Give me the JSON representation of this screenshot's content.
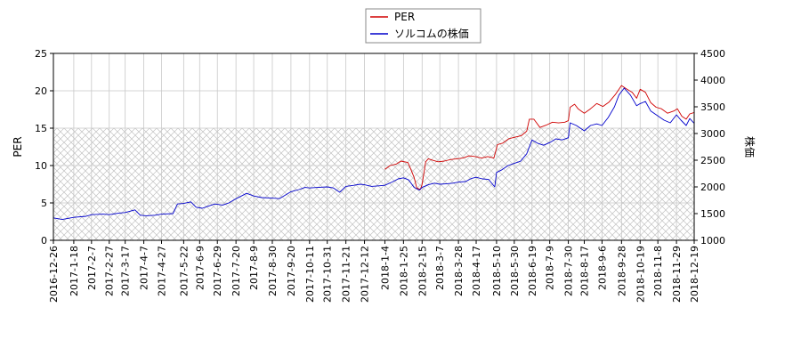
{
  "chart_data": {
    "type": "line",
    "grid": true,
    "hatched_band": {
      "from": 0,
      "to": 15
    },
    "legend_placement": "top-center",
    "xlim": [
      "2016-12-26",
      "2018-12-19"
    ],
    "x_ticks": [
      "2016-12-26",
      "2017-1-18",
      "2017-2-7",
      "2017-2-27",
      "2017-3-17",
      "2017-4-7",
      "2017-4-27",
      "2017-5-22",
      "2017-6-9",
      "2017-6-29",
      "2017-7-20",
      "2017-8-9",
      "2017-8-30",
      "2017-9-20",
      "2017-10-11",
      "2017-10-31",
      "2017-11-21",
      "2017-12-12",
      "2018-1-4",
      "2018-1-25",
      "2018-2-15",
      "2018-3-7",
      "2018-3-28",
      "2018-4-17",
      "2018-5-10",
      "2018-5-30",
      "2018-6-19",
      "2018-7-9",
      "2018-7-30",
      "2018-8-17",
      "2018-9-6",
      "2018-9-28",
      "2018-10-19",
      "2018-11-8",
      "2018-11-29",
      "2018-12-19"
    ],
    "y_left": {
      "label": "PER",
      "lim": [
        0,
        25
      ],
      "ticks": [
        "0",
        "5",
        "10",
        "15",
        "20",
        "25"
      ]
    },
    "y_right": {
      "label": "株価",
      "lim": [
        1000,
        4500
      ],
      "ticks": [
        "1000",
        "1500",
        "2000",
        "2500",
        "3000",
        "3500",
        "4000",
        "4500"
      ]
    },
    "series": [
      {
        "name": "PER",
        "axis": "left",
        "color": "#d00000",
        "points": [
          [
            "2018-01-04",
            9.5
          ],
          [
            "2018-01-10",
            10.0
          ],
          [
            "2018-01-17",
            10.2
          ],
          [
            "2018-01-22",
            10.6
          ],
          [
            "2018-01-30",
            10.4
          ],
          [
            "2018-02-02",
            9.6
          ],
          [
            "2018-02-06",
            8.4
          ],
          [
            "2018-02-09",
            7.0
          ],
          [
            "2018-02-13",
            6.8
          ],
          [
            "2018-02-15",
            7.5
          ],
          [
            "2018-02-19",
            10.5
          ],
          [
            "2018-02-22",
            10.9
          ],
          [
            "2018-02-27",
            10.7
          ],
          [
            "2018-03-05",
            10.5
          ],
          [
            "2018-03-12",
            10.6
          ],
          [
            "2018-03-19",
            10.8
          ],
          [
            "2018-03-26",
            10.9
          ],
          [
            "2018-04-02",
            11.0
          ],
          [
            "2018-04-09",
            11.3
          ],
          [
            "2018-04-16",
            11.2
          ],
          [
            "2018-04-23",
            11.0
          ],
          [
            "2018-04-30",
            11.2
          ],
          [
            "2018-05-07",
            11.0
          ],
          [
            "2018-05-11",
            12.8
          ],
          [
            "2018-05-17",
            13.0
          ],
          [
            "2018-05-24",
            13.6
          ],
          [
            "2018-05-31",
            13.8
          ],
          [
            "2018-06-07",
            14.0
          ],
          [
            "2018-06-13",
            14.6
          ],
          [
            "2018-06-16",
            16.2
          ],
          [
            "2018-06-21",
            16.2
          ],
          [
            "2018-06-28",
            15.1
          ],
          [
            "2018-07-05",
            15.4
          ],
          [
            "2018-07-12",
            15.8
          ],
          [
            "2018-07-19",
            15.7
          ],
          [
            "2018-07-26",
            15.8
          ],
          [
            "2018-07-30",
            16.0
          ],
          [
            "2018-08-01",
            17.8
          ],
          [
            "2018-08-06",
            18.2
          ],
          [
            "2018-08-10",
            17.6
          ],
          [
            "2018-08-17",
            17.0
          ],
          [
            "2018-08-24",
            17.6
          ],
          [
            "2018-08-31",
            18.3
          ],
          [
            "2018-09-07",
            17.9
          ],
          [
            "2018-09-14",
            18.5
          ],
          [
            "2018-09-21",
            19.5
          ],
          [
            "2018-09-28",
            20.7
          ],
          [
            "2018-10-03",
            20.3
          ],
          [
            "2018-10-10",
            19.8
          ],
          [
            "2018-10-15",
            19.0
          ],
          [
            "2018-10-19",
            20.2
          ],
          [
            "2018-10-25",
            19.8
          ],
          [
            "2018-10-31",
            18.4
          ],
          [
            "2018-11-06",
            17.8
          ],
          [
            "2018-11-12",
            17.6
          ],
          [
            "2018-11-19",
            17.0
          ],
          [
            "2018-11-26",
            17.3
          ],
          [
            "2018-11-30",
            17.6
          ],
          [
            "2018-12-05",
            16.6
          ],
          [
            "2018-12-10",
            16.2
          ],
          [
            "2018-12-14",
            16.9
          ],
          [
            "2018-12-19",
            17.1
          ]
        ]
      },
      {
        "name": "ソルコムの株価",
        "axis": "right",
        "color": "#0000cc",
        "points": [
          [
            "2016-12-26",
            1420
          ],
          [
            "2017-01-05",
            1390
          ],
          [
            "2017-01-18",
            1430
          ],
          [
            "2017-02-01",
            1450
          ],
          [
            "2017-02-07",
            1480
          ],
          [
            "2017-02-20",
            1490
          ],
          [
            "2017-02-27",
            1480
          ],
          [
            "2017-03-10",
            1510
          ],
          [
            "2017-03-17",
            1520
          ],
          [
            "2017-03-28",
            1570
          ],
          [
            "2017-04-03",
            1470
          ],
          [
            "2017-04-10",
            1460
          ],
          [
            "2017-04-20",
            1470
          ],
          [
            "2017-04-27",
            1490
          ],
          [
            "2017-05-10",
            1500
          ],
          [
            "2017-05-15",
            1680
          ],
          [
            "2017-05-22",
            1690
          ],
          [
            "2017-05-30",
            1720
          ],
          [
            "2017-06-05",
            1620
          ],
          [
            "2017-06-12",
            1600
          ],
          [
            "2017-06-19",
            1640
          ],
          [
            "2017-06-26",
            1680
          ],
          [
            "2017-07-05",
            1660
          ],
          [
            "2017-07-12",
            1700
          ],
          [
            "2017-07-18",
            1760
          ],
          [
            "2017-07-25",
            1820
          ],
          [
            "2017-08-01",
            1880
          ],
          [
            "2017-08-09",
            1830
          ],
          [
            "2017-08-18",
            1800
          ],
          [
            "2017-08-30",
            1790
          ],
          [
            "2017-09-07",
            1780
          ],
          [
            "2017-09-14",
            1850
          ],
          [
            "2017-09-20",
            1910
          ],
          [
            "2017-09-29",
            1950
          ],
          [
            "2017-10-06",
            1990
          ],
          [
            "2017-10-11",
            1980
          ],
          [
            "2017-10-20",
            1990
          ],
          [
            "2017-10-31",
            2000
          ],
          [
            "2017-11-07",
            1980
          ],
          [
            "2017-11-14",
            1900
          ],
          [
            "2017-11-21",
            2010
          ],
          [
            "2017-11-30",
            2030
          ],
          [
            "2017-12-07",
            2050
          ],
          [
            "2017-12-12",
            2040
          ],
          [
            "2017-12-20",
            2010
          ],
          [
            "2017-12-28",
            2020
          ],
          [
            "2018-01-04",
            2030
          ],
          [
            "2018-01-12",
            2090
          ],
          [
            "2018-01-19",
            2150
          ],
          [
            "2018-01-25",
            2170
          ],
          [
            "2018-01-31",
            2130
          ],
          [
            "2018-02-06",
            1990
          ],
          [
            "2018-02-12",
            1940
          ],
          [
            "2018-02-15",
            1990
          ],
          [
            "2018-02-22",
            2040
          ],
          [
            "2018-03-01",
            2070
          ],
          [
            "2018-03-07",
            2050
          ],
          [
            "2018-03-15",
            2060
          ],
          [
            "2018-03-22",
            2070
          ],
          [
            "2018-03-28",
            2090
          ],
          [
            "2018-04-05",
            2100
          ],
          [
            "2018-04-12",
            2160
          ],
          [
            "2018-04-17",
            2180
          ],
          [
            "2018-04-24",
            2150
          ],
          [
            "2018-05-01",
            2140
          ],
          [
            "2018-05-08",
            2000
          ],
          [
            "2018-05-10",
            2270
          ],
          [
            "2018-05-16",
            2320
          ],
          [
            "2018-05-23",
            2400
          ],
          [
            "2018-05-30",
            2440
          ],
          [
            "2018-06-06",
            2480
          ],
          [
            "2018-06-13",
            2620
          ],
          [
            "2018-06-19",
            2880
          ],
          [
            "2018-06-25",
            2820
          ],
          [
            "2018-07-02",
            2780
          ],
          [
            "2018-07-09",
            2830
          ],
          [
            "2018-07-16",
            2900
          ],
          [
            "2018-07-23",
            2880
          ],
          [
            "2018-07-30",
            2920
          ],
          [
            "2018-08-01",
            3200
          ],
          [
            "2018-08-08",
            3150
          ],
          [
            "2018-08-17",
            3050
          ],
          [
            "2018-08-24",
            3150
          ],
          [
            "2018-08-31",
            3180
          ],
          [
            "2018-09-06",
            3150
          ],
          [
            "2018-09-13",
            3300
          ],
          [
            "2018-09-20",
            3500
          ],
          [
            "2018-09-25",
            3720
          ],
          [
            "2018-10-01",
            3850
          ],
          [
            "2018-10-08",
            3720
          ],
          [
            "2018-10-15",
            3520
          ],
          [
            "2018-10-19",
            3560
          ],
          [
            "2018-10-25",
            3600
          ],
          [
            "2018-10-31",
            3420
          ],
          [
            "2018-11-08",
            3330
          ],
          [
            "2018-11-15",
            3250
          ],
          [
            "2018-11-22",
            3200
          ],
          [
            "2018-11-29",
            3350
          ],
          [
            "2018-12-04",
            3250
          ],
          [
            "2018-12-10",
            3150
          ],
          [
            "2018-12-14",
            3280
          ],
          [
            "2018-12-19",
            3190
          ]
        ]
      }
    ]
  }
}
